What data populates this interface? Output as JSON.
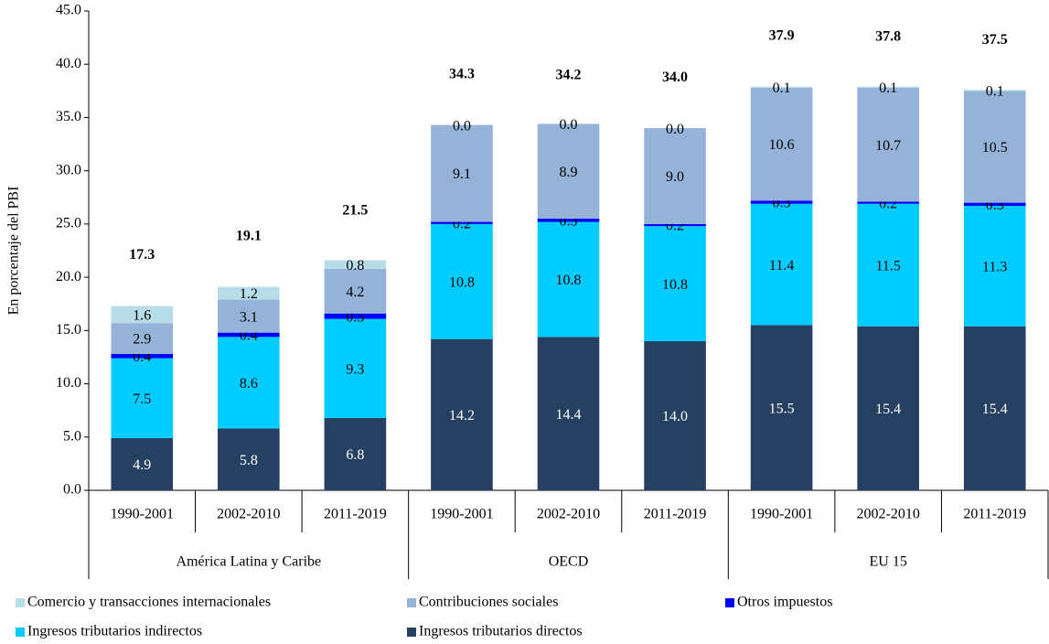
{
  "chart_data": {
    "type": "stacked-bar",
    "y_label": "En porcentaje del PBI",
    "ylim": [
      0,
      45
    ],
    "yticks": [
      {
        "value": 0,
        "label": "0.0"
      },
      {
        "value": 5,
        "label": "5.0"
      },
      {
        "value": 10,
        "label": "10.0"
      },
      {
        "value": 15,
        "label": "15.0"
      },
      {
        "value": 20,
        "label": "20.0"
      },
      {
        "value": 25,
        "label": "25.0"
      },
      {
        "value": 30,
        "label": "30.0"
      },
      {
        "value": 35,
        "label": "35.0"
      },
      {
        "value": 40,
        "label": "40.0"
      },
      {
        "value": 45,
        "label": "45.0"
      }
    ],
    "groups": [
      {
        "name": "América Latina y Caribe",
        "categories": [
          "1990-2001",
          "2002-2010",
          "2011-2019"
        ]
      },
      {
        "name": "OECD",
        "categories": [
          "1990-2001",
          "2002-2010",
          "2011-2019"
        ]
      },
      {
        "name": "EU 15",
        "categories": [
          "1990-2001",
          "2002-2010",
          "2011-2019"
        ]
      }
    ],
    "series": [
      {
        "name": "Ingresos tributarios directos",
        "color": "#254061",
        "label_color": "#ffffff",
        "values": [
          4.9,
          5.8,
          6.8,
          14.2,
          14.4,
          14.0,
          15.5,
          15.4,
          15.4
        ],
        "value_labels": [
          "4.9",
          "5.8",
          "6.8",
          "14.2",
          "14.4",
          "14.0",
          "15.5",
          "15.4",
          "15.4"
        ]
      },
      {
        "name": "Ingresos tributarios indirectos",
        "color": "#00ccff",
        "label_color": "#000000",
        "values": [
          7.5,
          8.6,
          9.3,
          10.8,
          10.8,
          10.8,
          11.4,
          11.5,
          11.3
        ],
        "value_labels": [
          "7.5",
          "8.6",
          "9.3",
          "10.8",
          "10.8",
          "10.8",
          "11.4",
          "11.5",
          "11.3"
        ]
      },
      {
        "name": "Otros impuestos",
        "color": "#0000ff",
        "label_color": "#000000",
        "values": [
          0.4,
          0.4,
          0.5,
          0.2,
          0.3,
          0.2,
          0.3,
          0.2,
          0.3
        ],
        "value_labels": [
          "0.4",
          "0.4",
          "0.5",
          "0.2",
          "0.3",
          "0.2",
          "0.3",
          "0.2",
          "0.3"
        ]
      },
      {
        "name": "Contribuciones sociales",
        "color": "#95b3d7",
        "label_color": "#000000",
        "values": [
          2.9,
          3.1,
          4.2,
          9.1,
          8.9,
          9.0,
          10.6,
          10.7,
          10.5
        ],
        "value_labels": [
          "2.9",
          "3.1",
          "4.2",
          "9.1",
          "8.9",
          "9.0",
          "10.6",
          "10.7",
          "10.5"
        ]
      },
      {
        "name": "Comercio y transacciones internacionales",
        "color": "#b7dee8",
        "label_color": "#000000",
        "values": [
          1.6,
          1.2,
          0.8,
          0.0,
          0.0,
          0.0,
          0.1,
          0.1,
          0.1
        ],
        "value_labels": [
          "1.6",
          "1.2",
          "0.8",
          "0.0",
          "0.0",
          "0.0",
          "0.1",
          "0.1",
          "0.1"
        ]
      }
    ],
    "totals": {
      "values": [
        17.3,
        19.1,
        21.5,
        34.3,
        34.2,
        34.0,
        37.9,
        37.8,
        37.5
      ],
      "value_labels": [
        "17.3",
        "19.1",
        "21.5",
        "34.3",
        "34.2",
        "34.0",
        "37.9",
        "37.8",
        "37.5"
      ]
    }
  }
}
